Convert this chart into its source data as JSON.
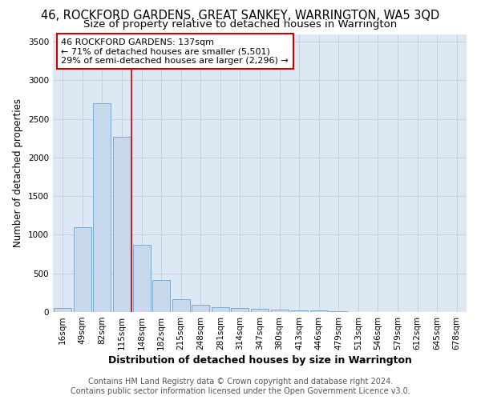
{
  "title": "46, ROCKFORD GARDENS, GREAT SANKEY, WARRINGTON, WA5 3QD",
  "subtitle": "Size of property relative to detached houses in Warrington",
  "xlabel": "Distribution of detached houses by size in Warrington",
  "ylabel": "Number of detached properties",
  "footer_line1": "Contains HM Land Registry data © Crown copyright and database right 2024.",
  "footer_line2": "Contains public sector information licensed under the Open Government Licence v3.0.",
  "categories": [
    "16sqm",
    "49sqm",
    "82sqm",
    "115sqm",
    "148sqm",
    "182sqm",
    "215sqm",
    "248sqm",
    "281sqm",
    "314sqm",
    "347sqm",
    "380sqm",
    "413sqm",
    "446sqm",
    "479sqm",
    "513sqm",
    "546sqm",
    "579sqm",
    "612sqm",
    "645sqm",
    "678sqm"
  ],
  "values": [
    50,
    1100,
    2700,
    2270,
    870,
    415,
    170,
    95,
    65,
    55,
    45,
    30,
    25,
    20,
    10,
    0,
    0,
    0,
    0,
    0,
    0
  ],
  "bar_color": "#c8d8ec",
  "bar_edge_color": "#7aaad0",
  "bar_linewidth": 0.7,
  "ylim": [
    0,
    3600
  ],
  "yticks": [
    0,
    500,
    1000,
    1500,
    2000,
    2500,
    3000,
    3500
  ],
  "grid_color": "#c8d0dc",
  "bg_color": "#dce8f4",
  "annotation_text": "46 ROCKFORD GARDENS: 137sqm\n← 71% of detached houses are smaller (5,501)\n29% of semi-detached houses are larger (2,296) →",
  "annotation_box_facecolor": "#ffffff",
  "annotation_box_edgecolor": "#cc0000",
  "vline_x": 4,
  "vline_color": "#cc0000",
  "title_fontsize": 10.5,
  "subtitle_fontsize": 9.5,
  "xlabel_fontsize": 9,
  "ylabel_fontsize": 8.5,
  "tick_fontsize": 7.5,
  "annotation_fontsize": 8,
  "footer_fontsize": 7
}
